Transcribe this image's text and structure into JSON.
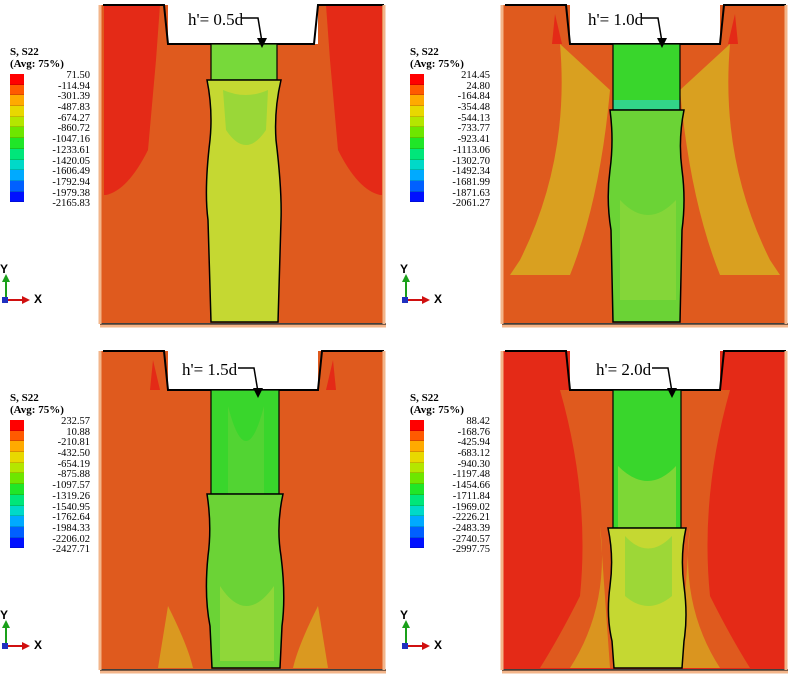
{
  "legend_title_line1": "S, S22",
  "legend_title_line2": "(Avg: 75%)",
  "axis_y": "Y",
  "axis_x": "X",
  "colors": {
    "red": "#e42a17",
    "orange": "#df5a1e",
    "gold": "#d9a020",
    "yellowgreen": "#c5d832",
    "green": "#39d62c",
    "green_light": "#77d93a",
    "cyan": "#2fd3c8"
  },
  "contour_colors": [
    "#ff0000",
    "#ff5a00",
    "#ffaa00",
    "#e8d800",
    "#b4e600",
    "#6ee600",
    "#20e628",
    "#00e67a",
    "#00d9c8",
    "#00aaff",
    "#0060ff",
    "#0010ff"
  ],
  "panels": [
    {
      "label": "h'= 0.5d",
      "legend": [
        "71.50",
        "-114.94",
        "-301.39",
        "-487.83",
        "-674.27",
        "-860.72",
        "-1047.16",
        "-1233.61",
        "-1420.05",
        "-1606.49",
        "-1792.94",
        "-1979.38",
        "-2165.83"
      ]
    },
    {
      "label": "h'= 1.0d",
      "legend": [
        "214.45",
        "24.80",
        "-164.84",
        "-354.48",
        "-544.13",
        "-733.77",
        "-923.41",
        "-1113.06",
        "-1302.70",
        "-1492.34",
        "-1681.99",
        "-1871.63",
        "-2061.27"
      ]
    },
    {
      "label": "h'= 1.5d",
      "legend": [
        "232.57",
        "10.88",
        "-210.81",
        "-432.50",
        "-654.19",
        "-875.88",
        "-1097.57",
        "-1319.26",
        "-1540.95",
        "-1762.64",
        "-1984.33",
        "-2206.02",
        "-2427.71"
      ]
    },
    {
      "label": "h'= 2.0d",
      "legend": [
        "88.42",
        "-168.76",
        "-425.94",
        "-683.12",
        "-940.30",
        "-1197.48",
        "-1454.66",
        "-1711.84",
        "-1969.02",
        "-2226.21",
        "-2483.39",
        "-2740.57",
        "-2997.75"
      ]
    }
  ]
}
